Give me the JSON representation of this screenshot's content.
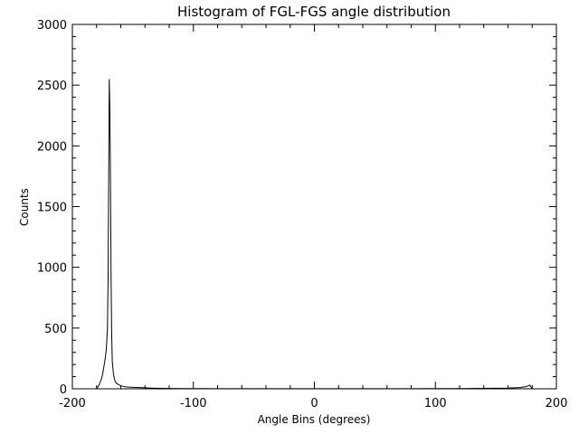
{
  "chart_data": {
    "type": "line",
    "title": "Histogram of FGL-FGS angle distribution",
    "xlabel": "Angle Bins (degrees)",
    "ylabel": "Counts",
    "xlim": [
      -200,
      200
    ],
    "ylim": [
      0,
      3000
    ],
    "x_ticks": [
      "-200",
      "-100",
      "0",
      "100",
      "200"
    ],
    "y_ticks": [
      "0",
      "500",
      "1000",
      "1500",
      "2000",
      "2500",
      "3000"
    ],
    "grid": false,
    "line_color": "#000000",
    "series": [
      {
        "x": [
          -180,
          -178,
          -176,
          -175,
          -174,
          -173,
          -172,
          -171,
          -170.5,
          -170,
          -169.5,
          -169,
          -168.5,
          -168,
          -167.5,
          -167,
          -166,
          -165,
          -164,
          -162,
          -160,
          -158,
          -155,
          -150,
          -145,
          -140,
          -135,
          -130,
          -125,
          -120,
          -110,
          -100,
          -80,
          -60,
          -40,
          -20,
          0,
          20,
          40,
          60,
          80,
          100,
          120,
          130,
          140,
          150,
          160,
          165,
          170,
          175,
          178,
          180
        ],
        "y": [
          0,
          30,
          80,
          120,
          180,
          240,
          320,
          500,
          900,
          1700,
          2550,
          2300,
          1700,
          900,
          450,
          220,
          120,
          70,
          50,
          35,
          25,
          20,
          15,
          12,
          10,
          8,
          6,
          5,
          4,
          3,
          2,
          2,
          1,
          1,
          1,
          1,
          1,
          1,
          1,
          1,
          1,
          2,
          2,
          3,
          4,
          5,
          6,
          8,
          10,
          18,
          30,
          0
        ]
      }
    ]
  }
}
